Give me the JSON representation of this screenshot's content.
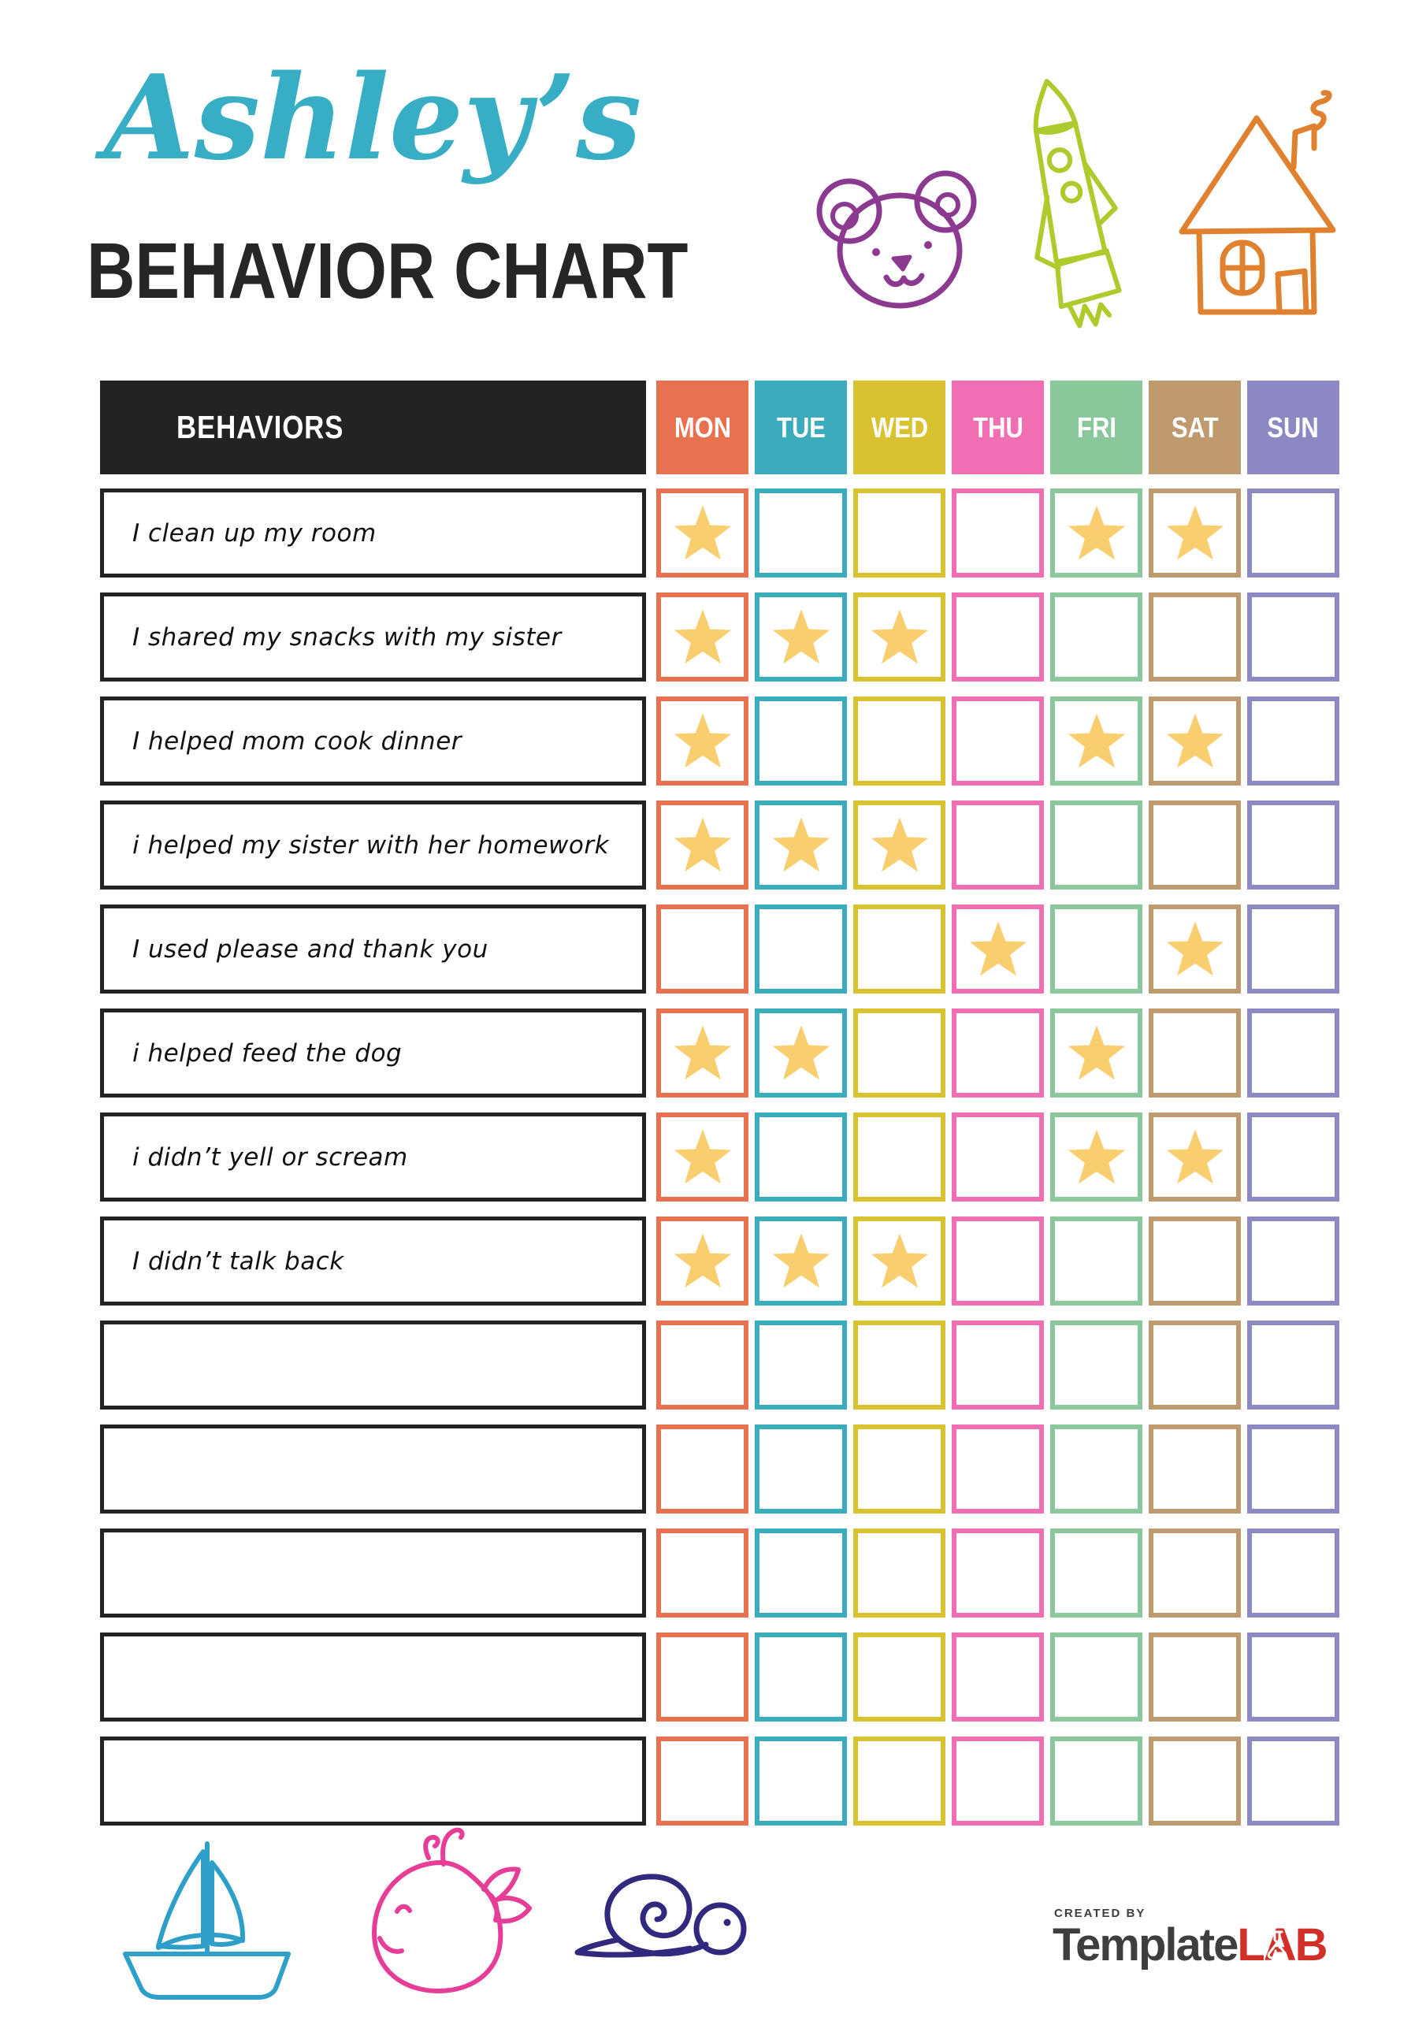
{
  "header": {
    "name": "Ashley’s",
    "title": "BEHAVIOR CHART",
    "accent_color": "#38AEC4",
    "title_color": "#262626"
  },
  "table": {
    "behaviors_header": "BEHAVIORS",
    "header_bg": "#232323",
    "star_color": "#F9CE6E",
    "days": [
      {
        "label": "MON",
        "color": "#E8714F"
      },
      {
        "label": "TUE",
        "color": "#3AACBC"
      },
      {
        "label": "WED",
        "color": "#D9C22F"
      },
      {
        "label": "THU",
        "color": "#F06FB2"
      },
      {
        "label": "FRI",
        "color": "#8AC89B"
      },
      {
        "label": "SAT",
        "color": "#BE9A6E"
      },
      {
        "label": "SUN",
        "color": "#8B88C4"
      }
    ],
    "rows": [
      {
        "behavior": "I clean up my room",
        "stars": [
          1,
          0,
          0,
          0,
          1,
          1,
          0
        ]
      },
      {
        "behavior": "I shared my snacks with my sister",
        "stars": [
          1,
          1,
          1,
          0,
          0,
          0,
          0
        ]
      },
      {
        "behavior": "I helped mom cook dinner",
        "stars": [
          1,
          0,
          0,
          0,
          1,
          1,
          0
        ]
      },
      {
        "behavior": "i helped my sister with her homework",
        "stars": [
          1,
          1,
          1,
          0,
          0,
          0,
          0
        ]
      },
      {
        "behavior": "I used please and thank you",
        "stars": [
          0,
          0,
          0,
          1,
          0,
          1,
          0
        ]
      },
      {
        "behavior": "i helped feed the dog",
        "stars": [
          1,
          1,
          0,
          0,
          1,
          0,
          0
        ]
      },
      {
        "behavior": "i didn’t yell or scream",
        "stars": [
          1,
          0,
          0,
          0,
          1,
          1,
          0
        ]
      },
      {
        "behavior": "I didn’t talk back",
        "stars": [
          1,
          1,
          1,
          0,
          0,
          0,
          0
        ]
      },
      {
        "behavior": "",
        "stars": [
          0,
          0,
          0,
          0,
          0,
          0,
          0
        ]
      },
      {
        "behavior": "",
        "stars": [
          0,
          0,
          0,
          0,
          0,
          0,
          0
        ]
      },
      {
        "behavior": "",
        "stars": [
          0,
          0,
          0,
          0,
          0,
          0,
          0
        ]
      },
      {
        "behavior": "",
        "stars": [
          0,
          0,
          0,
          0,
          0,
          0,
          0
        ]
      },
      {
        "behavior": "",
        "stars": [
          0,
          0,
          0,
          0,
          0,
          0,
          0
        ]
      }
    ]
  },
  "footer": {
    "created_by": "CREATED BY",
    "brand_primary": "Template",
    "brand_secondary": "LAB"
  },
  "doodles": {
    "top": [
      "bear-icon",
      "rocket-icon",
      "house-icon"
    ],
    "bottom": [
      "sailboat-icon",
      "whale-icon",
      "snail-icon"
    ],
    "colors": {
      "bear": "#8B3A90",
      "rocket": "#AECB2D",
      "house": "#E0812F",
      "sailboat": "#2D9FC8",
      "whale": "#E63D96",
      "snail": "#30297E"
    }
  }
}
